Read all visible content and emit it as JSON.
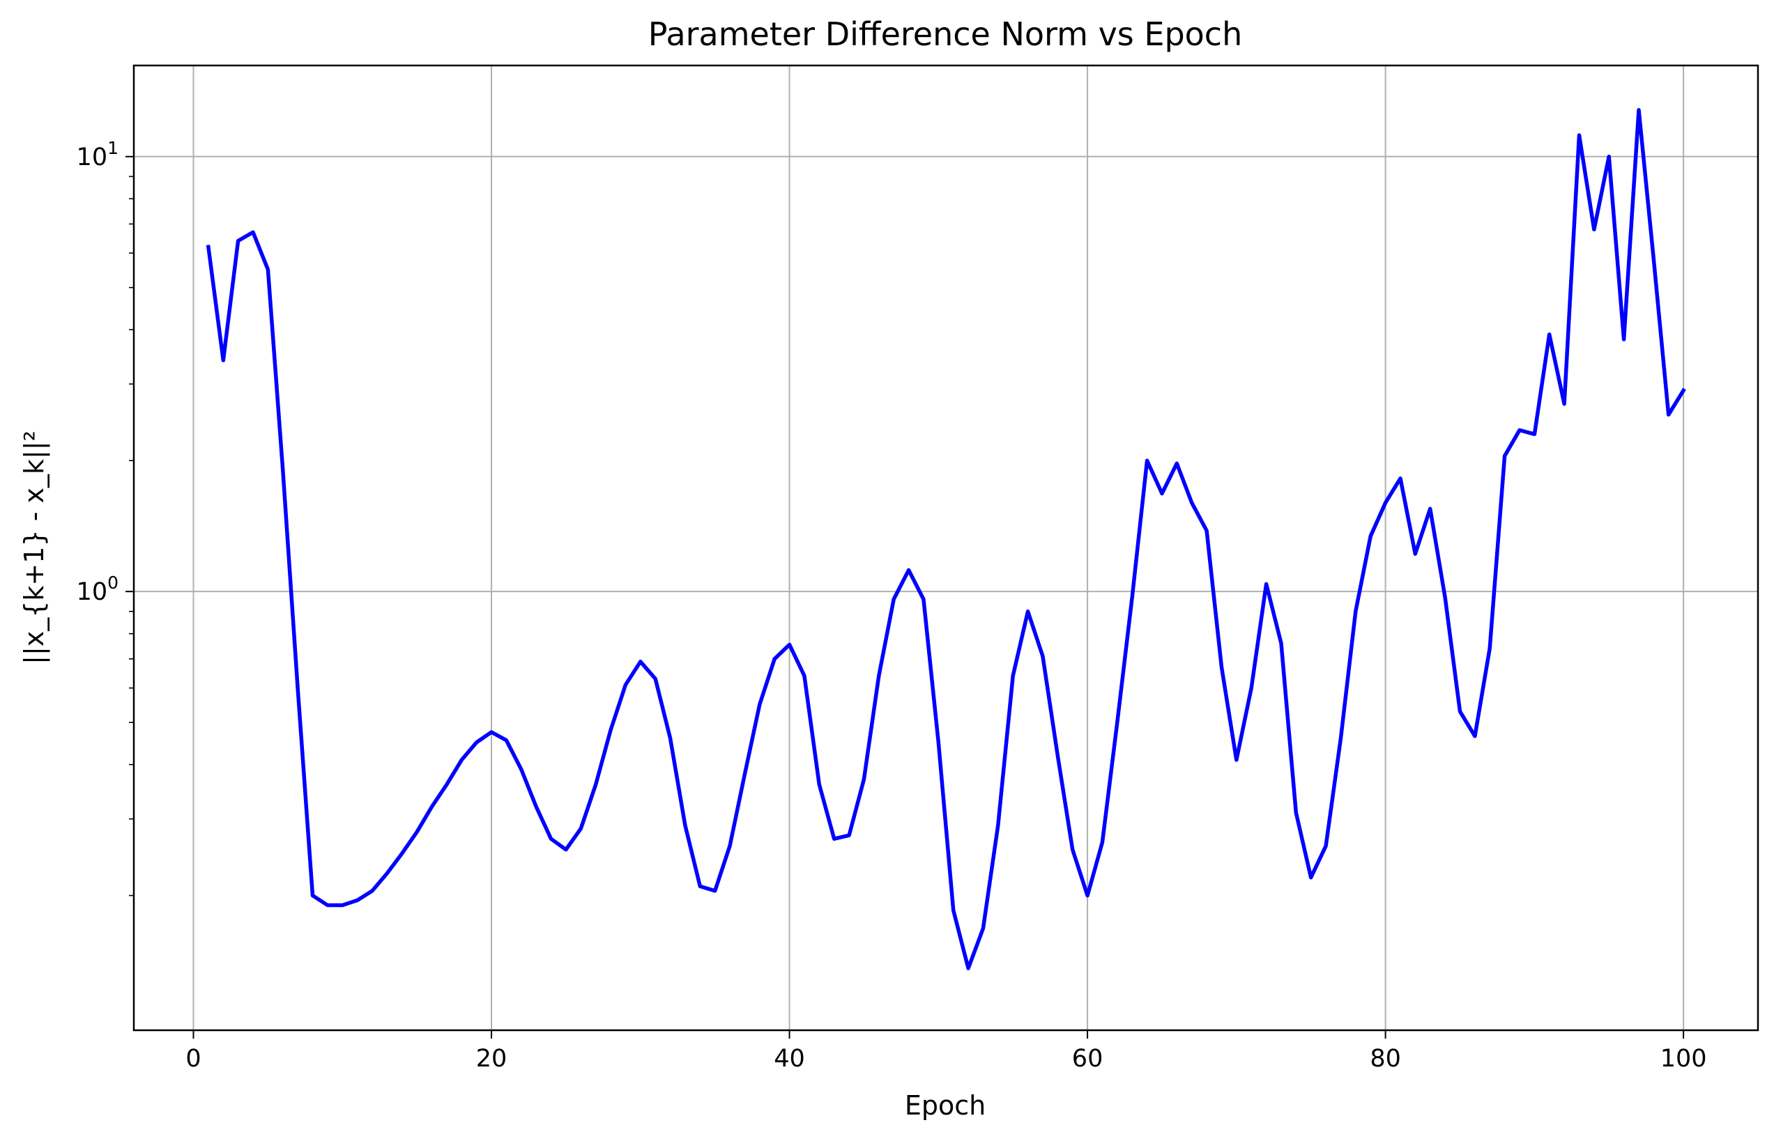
{
  "chart_data": {
    "type": "line",
    "title": "Parameter Difference Norm vs Epoch",
    "xlabel": "Epoch",
    "ylabel": "||x_{k+1} - x_k||²",
    "xlim": [
      -4,
      105
    ],
    "ylim": [
      0.098,
      16.2
    ],
    "yscale": "log",
    "grid": true,
    "x_ticks": [
      {
        "value": 0,
        "label": "0"
      },
      {
        "value": 20,
        "label": "20"
      },
      {
        "value": 40,
        "label": "40"
      },
      {
        "value": 60,
        "label": "60"
      },
      {
        "value": 80,
        "label": "80"
      },
      {
        "value": 100,
        "label": "100"
      }
    ],
    "y_ticks": [
      {
        "value": 1,
        "base": "10",
        "exp": "0"
      },
      {
        "value": 10,
        "base": "10",
        "exp": "1"
      }
    ],
    "series": [
      {
        "color": "#0000ff",
        "x": [
          1,
          2,
          3,
          4,
          5,
          6,
          7,
          8,
          9,
          10,
          11,
          12,
          13,
          14,
          15,
          16,
          17,
          18,
          19,
          20,
          21,
          22,
          23,
          24,
          25,
          26,
          27,
          28,
          29,
          30,
          31,
          32,
          33,
          34,
          35,
          36,
          37,
          38,
          39,
          40,
          41,
          42,
          43,
          44,
          45,
          46,
          47,
          48,
          49,
          50,
          51,
          52,
          53,
          54,
          55,
          56,
          57,
          58,
          59,
          60,
          61,
          62,
          63,
          64,
          65,
          66,
          67,
          68,
          69,
          70,
          71,
          72,
          73,
          74,
          75,
          76,
          77,
          78,
          79,
          80,
          81,
          82,
          83,
          84,
          85,
          86,
          87,
          88,
          89,
          90,
          91,
          92,
          93,
          94,
          95,
          96,
          97,
          98,
          99,
          100
        ],
        "y": [
          6.2,
          3.4,
          6.4,
          6.7,
          5.5,
          1.9,
          0.6,
          0.2,
          0.19,
          0.19,
          0.195,
          0.205,
          0.225,
          0.25,
          0.28,
          0.32,
          0.36,
          0.41,
          0.45,
          0.475,
          0.455,
          0.39,
          0.32,
          0.27,
          0.255,
          0.285,
          0.36,
          0.48,
          0.61,
          0.69,
          0.63,
          0.46,
          0.29,
          0.21,
          0.205,
          0.26,
          0.38,
          0.55,
          0.7,
          0.755,
          0.64,
          0.36,
          0.27,
          0.275,
          0.37,
          0.64,
          0.96,
          1.12,
          0.96,
          0.45,
          0.185,
          0.136,
          0.168,
          0.29,
          0.64,
          0.9,
          0.71,
          0.42,
          0.255,
          0.2,
          0.265,
          0.5,
          0.97,
          2.0,
          1.68,
          1.97,
          1.6,
          1.38,
          0.67,
          0.41,
          0.6,
          1.04,
          0.76,
          0.31,
          0.22,
          0.26,
          0.46,
          0.9,
          1.34,
          1.6,
          1.82,
          1.22,
          1.55,
          0.97,
          0.53,
          0.465,
          0.74,
          2.05,
          2.35,
          2.3,
          3.9,
          2.7,
          11.2,
          6.8,
          10.0,
          3.8,
          12.8,
          5.8,
          2.55,
          2.9
        ]
      }
    ]
  }
}
